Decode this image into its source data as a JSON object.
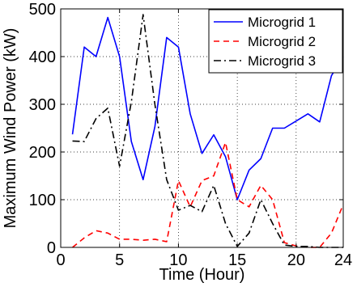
{
  "chart_data": {
    "type": "line",
    "xlabel": "Time (Hour)",
    "ylabel": "Maximum Wind Power (kW)",
    "xlim": [
      0,
      24
    ],
    "ylim": [
      0,
      500
    ],
    "xticks": [
      0,
      5,
      10,
      15,
      20,
      24
    ],
    "yticks": [
      0,
      100,
      200,
      300,
      400,
      500
    ],
    "grid": true,
    "legend_position": "top-right",
    "x": [
      1,
      2,
      3,
      4,
      5,
      6,
      7,
      8,
      9,
      10,
      11,
      12,
      13,
      14,
      15,
      16,
      17,
      18,
      19,
      20,
      21,
      22,
      23,
      24
    ],
    "series": [
      {
        "name": "Microgrid 1",
        "color": "#0000ff",
        "dash": "solid",
        "values": [
          237,
          420,
          400,
          482,
          400,
          222,
          142,
          253,
          440,
          420,
          280,
          197,
          236,
          190,
          100,
          162,
          186,
          250,
          250,
          265,
          280,
          263,
          360,
          400
        ]
      },
      {
        "name": "Microgrid 2",
        "color": "#ff0000",
        "dash": "dashed",
        "values": [
          0,
          20,
          35,
          30,
          17,
          17,
          15,
          17,
          12,
          140,
          85,
          140,
          150,
          220,
          100,
          85,
          130,
          100,
          10,
          3,
          0,
          0,
          30,
          90
        ]
      },
      {
        "name": "Microgrid 3",
        "color": "#000000",
        "dash": "dashdot",
        "values": [
          223,
          222,
          270,
          292,
          170,
          305,
          488,
          300,
          142,
          78,
          88,
          75,
          130,
          50,
          2,
          30,
          100,
          50,
          5,
          2,
          2,
          0,
          0,
          0
        ]
      }
    ]
  }
}
